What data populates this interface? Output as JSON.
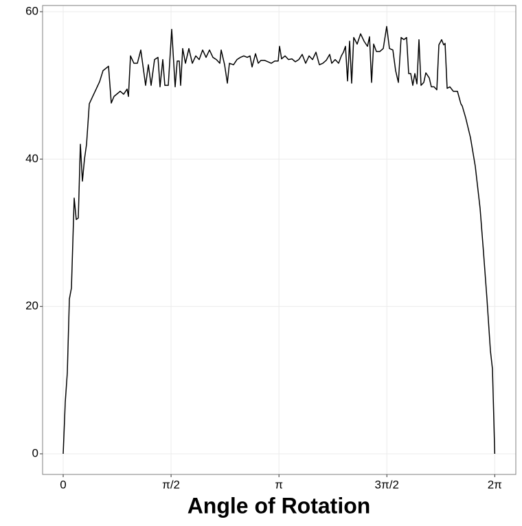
{
  "chart_data": {
    "type": "line",
    "x_label": "Angle of Rotation",
    "x": [
      0,
      0.03,
      0.06,
      0.09,
      0.12,
      0.16,
      0.19,
      0.22,
      0.25,
      0.28,
      0.31,
      0.34,
      0.38,
      0.43,
      0.48,
      0.53,
      0.58,
      0.66,
      0.7,
      0.74,
      0.83,
      0.88,
      0.93,
      0.95,
      0.98,
      1.03,
      1.08,
      1.13,
      1.2,
      1.24,
      1.28,
      1.33,
      1.38,
      1.41,
      1.45,
      1.48,
      1.53,
      1.58,
      1.63,
      1.66,
      1.69,
      1.71,
      1.74,
      1.78,
      1.83,
      1.88,
      1.93,
      1.98,
      2.03,
      2.08,
      2.13,
      2.18,
      2.23,
      2.28,
      2.3,
      2.35,
      2.39,
      2.42,
      2.48,
      2.53,
      2.58,
      2.63,
      2.68,
      2.72,
      2.75,
      2.8,
      2.84,
      2.88,
      2.93,
      2.98,
      3.03,
      3.08,
      3.13,
      3.15,
      3.18,
      3.23,
      3.28,
      3.33,
      3.38,
      3.43,
      3.48,
      3.53,
      3.58,
      3.63,
      3.68,
      3.73,
      3.78,
      3.83,
      3.88,
      3.91,
      3.96,
      4.01,
      4.05,
      4.08,
      4.11,
      4.14,
      4.17,
      4.2,
      4.23,
      4.28,
      4.33,
      4.38,
      4.43,
      4.46,
      4.49,
      4.52,
      4.56,
      4.61,
      4.66,
      4.71,
      4.75,
      4.8,
      4.84,
      4.88,
      4.92,
      4.96,
      5.0,
      5.03,
      5.06,
      5.09,
      5.12,
      5.15,
      5.18,
      5.21,
      5.25,
      5.28,
      5.33,
      5.36,
      5.4,
      5.44,
      5.47,
      5.51,
      5.54,
      5.56,
      5.59,
      5.63,
      5.68,
      5.74,
      5.79,
      5.81,
      5.86,
      5.93,
      6.0,
      6.07,
      6.12,
      6.17,
      6.22,
      6.25,
      6.2832
    ],
    "series": [
      {
        "color": "#000000",
        "values": [
          0,
          7,
          11,
          21,
          22.5,
          34.7,
          31.8,
          32,
          42,
          37,
          40,
          42,
          47.5,
          48.5,
          49.5,
          50.5,
          52,
          52.6,
          47.6,
          48.5,
          49.2,
          48.8,
          49.5,
          48.5,
          54,
          53,
          53,
          54.8,
          50,
          52.8,
          50,
          53.5,
          53.8,
          49.8,
          53.5,
          50,
          50,
          57.6,
          49.8,
          53.3,
          53.3,
          50,
          55,
          53,
          55,
          53,
          54,
          53.5,
          54.8,
          53.8,
          54.8,
          53.8,
          53.5,
          53,
          54.8,
          52.8,
          50.3,
          53,
          52.8,
          53.5,
          53.8,
          54,
          53.8,
          54,
          52.5,
          54.3,
          53,
          53.4,
          53.4,
          53.2,
          53,
          53.3,
          53.3,
          55.3,
          53.6,
          54,
          53.5,
          53.6,
          53.2,
          53.5,
          54.2,
          53,
          54,
          53.5,
          54.5,
          52.8,
          53,
          53.4,
          54.2,
          53,
          53.5,
          53,
          54,
          54.5,
          55.3,
          50.6,
          56,
          50.3,
          56.5,
          55.6,
          57,
          56,
          55.3,
          56.6,
          50.4,
          55.6,
          54.6,
          54.6,
          55,
          58,
          55,
          54.8,
          52,
          50.4,
          56.5,
          56.2,
          56.5,
          51.6,
          51.6,
          50,
          51.6,
          50.2,
          56.2,
          50,
          50.4,
          51.7,
          51,
          49.8,
          49.8,
          49.4,
          55.5,
          56.2,
          55.5,
          55.7,
          49.6,
          49.8,
          49.2,
          49.2,
          47.5,
          47.2,
          45.6,
          42.9,
          39,
          33.3,
          27.3,
          21,
          14,
          11.5,
          0
        ]
      }
    ],
    "xlim": [
      -0.3,
      6.59
    ],
    "ylim": [
      -2.8,
      60.84
    ],
    "xticks": [
      0,
      {
        "value": 1.5708,
        "label": "π/2"
      },
      {
        "value": 3.1416,
        "label": "π"
      },
      {
        "value": 4.7124,
        "label": "3π/2"
      },
      {
        "value": 6.2832,
        "label": "2π"
      }
    ],
    "yticks": [
      0,
      20,
      40,
      60
    ],
    "grid": true
  }
}
